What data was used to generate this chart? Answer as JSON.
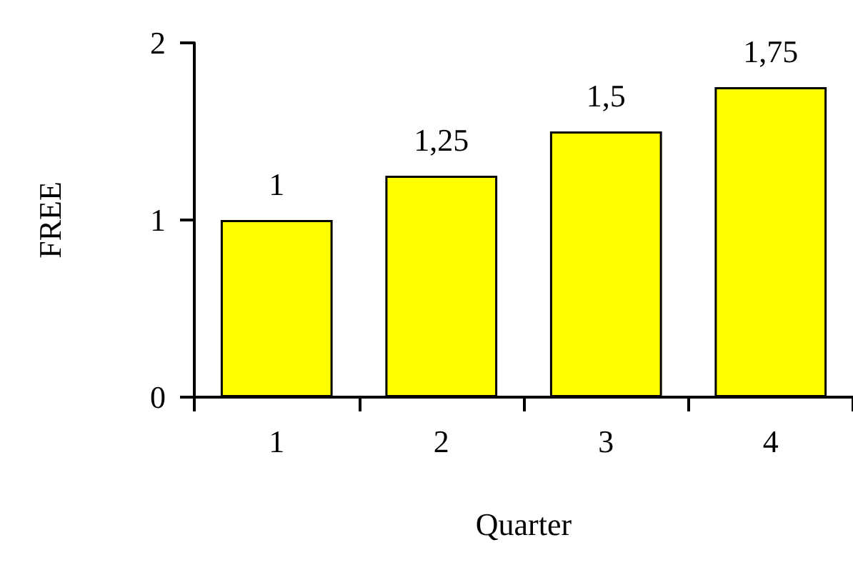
{
  "chart_data": {
    "type": "bar",
    "xlabel": "Quarter",
    "ylabel": "FREE",
    "categories": [
      "1",
      "2",
      "3",
      "4"
    ],
    "values": [
      1,
      1.25,
      1.5,
      1.75
    ],
    "value_labels": [
      "1",
      "1,25",
      "1,5",
      "1,75"
    ],
    "color": "#ffff00",
    "ylim": [
      0,
      2
    ],
    "yticks": [
      0,
      1,
      2
    ],
    "grid": false
  }
}
